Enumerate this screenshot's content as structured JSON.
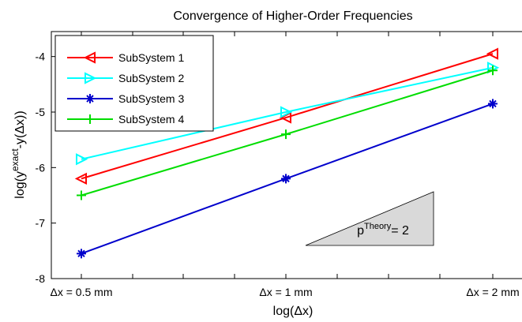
{
  "chart_data": {
    "type": "line",
    "title": "Convergence of Higher-Order Frequencies",
    "xlabel": "log(Δx)",
    "ylabel_parts": {
      "pre": "log(y",
      "sup": "exact",
      "post": "-y(Δx))"
    },
    "categories": [
      "Δx = 0.5 mm",
      "Δx = 1 mm",
      "Δx = 2 mm"
    ],
    "yticks": [
      "-8",
      "-7",
      "-6",
      "-5",
      "-4"
    ],
    "ylim": [
      -8,
      -3.55
    ],
    "grid": false,
    "legend_position": "top-left",
    "series": [
      {
        "name": "SubSystem 1",
        "values": [
          -6.2,
          -5.1,
          -3.95
        ],
        "color": "#ff0000",
        "marker": "triangle-left"
      },
      {
        "name": "SubSystem 2",
        "values": [
          -5.85,
          -5.0,
          -4.2
        ],
        "color": "#00ffff",
        "marker": "triangle-right"
      },
      {
        "name": "SubSystem 3",
        "values": [
          -7.55,
          -6.2,
          -4.85
        ],
        "color": "#0000cc",
        "marker": "star"
      },
      {
        "name": "SubSystem 4",
        "values": [
          -6.5,
          -5.4,
          -4.25
        ],
        "color": "#00dd00",
        "marker": "plus"
      }
    ],
    "annotation": {
      "base": "p",
      "sup": "Theory",
      "post": "= 2"
    }
  }
}
